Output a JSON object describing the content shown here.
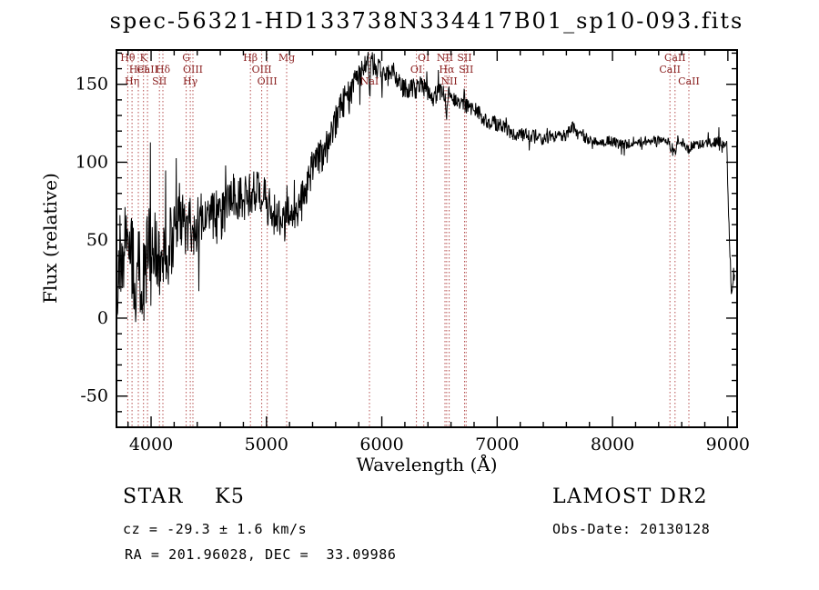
{
  "footer": {
    "star_class": "STAR    K5",
    "survey": "LAMOST DR2",
    "cz": "cz = -29.3 ± 1.6 km/s",
    "obs_date": "Obs-Date: 20130128",
    "ra_dec": "RA = 201.96028, DEC =  33.09986"
  },
  "chart_data": {
    "type": "line",
    "title": "spec-56321-HD133738N334417B01_sp10-093.fits",
    "xlabel": "Wavelength (Å)",
    "ylabel": "Flux (relative)",
    "xlim": [
      3700,
      9080
    ],
    "ylim": [
      -70,
      172
    ],
    "x_major_ticks": [
      4000,
      5000,
      6000,
      7000,
      8000,
      9000
    ],
    "x_minor_step": 200,
    "y_major_ticks": [
      -50,
      0,
      50,
      100,
      150
    ],
    "y_minor_step": 10,
    "grid": false,
    "legend": "none",
    "line_color": "#000000",
    "marker_line_color": "#b65050",
    "marker_label_color": "#8b2222",
    "label_row_y": [
      67,
      80,
      93
    ],
    "sample_step": 4,
    "spectral_lines": [
      {
        "label": "Hθ",
        "wavelength": 3798,
        "row": 0
      },
      {
        "label": "K",
        "wavelength": 3934,
        "row": 0
      },
      {
        "label": "G",
        "wavelength": 4304,
        "row": 0
      },
      {
        "label": "Hβ",
        "wavelength": 4861,
        "row": 0
      },
      {
        "label": "Mg",
        "wavelength": 5175,
        "row": 0
      },
      {
        "label": "OI",
        "wavelength": 6364,
        "row": 0
      },
      {
        "label": "NII",
        "wavelength": 6548,
        "row": 0
      },
      {
        "label": "SII",
        "wavelength": 6717,
        "row": 0
      },
      {
        "label": "CaII",
        "wavelength": 8542,
        "row": 0
      },
      {
        "label": "CaII",
        "wavelength": 3969,
        "row": 1
      },
      {
        "label": "HeI",
        "wavelength": 3889,
        "row": 1
      },
      {
        "label": "Hδ",
        "wavelength": 4102,
        "row": 1
      },
      {
        "label": "OIII",
        "wavelength": 4363,
        "row": 1
      },
      {
        "label": "OIII",
        "wavelength": 4959,
        "row": 1
      },
      {
        "label": "OI",
        "wavelength": 6300,
        "row": 1
      },
      {
        "label": "Hα",
        "wavelength": 6563,
        "row": 1
      },
      {
        "label": "SII",
        "wavelength": 6731,
        "row": 1
      },
      {
        "label": "CaII",
        "wavelength": 8498,
        "row": 1
      },
      {
        "label": "Hη",
        "wavelength": 3835,
        "row": 2
      },
      {
        "label": "SII",
        "wavelength": 4072,
        "row": 2
      },
      {
        "label": "Hγ",
        "wavelength": 4340,
        "row": 2
      },
      {
        "label": "OIII",
        "wavelength": 5007,
        "row": 2
      },
      {
        "label": "NaI",
        "wavelength": 5893,
        "row": 2
      },
      {
        "label": "NII",
        "wavelength": 6584,
        "row": 2
      },
      {
        "label": "CaII",
        "wavelength": 8662,
        "row": 2
      }
    ],
    "envelope": [
      [
        3700,
        25
      ],
      [
        3740,
        45
      ],
      [
        3780,
        40
      ],
      [
        3820,
        48
      ],
      [
        3860,
        38
      ],
      [
        3900,
        45
      ],
      [
        3940,
        35
      ],
      [
        3980,
        48
      ],
      [
        4020,
        42
      ],
      [
        4060,
        46
      ],
      [
        4100,
        40
      ],
      [
        4150,
        48
      ],
      [
        4200,
        50
      ],
      [
        4250,
        53
      ],
      [
        4300,
        52
      ],
      [
        4350,
        56
      ],
      [
        4400,
        60
      ],
      [
        4450,
        62
      ],
      [
        4500,
        64
      ],
      [
        4550,
        67
      ],
      [
        4600,
        70
      ],
      [
        4650,
        74
      ],
      [
        4700,
        78
      ],
      [
        4750,
        80
      ],
      [
        4800,
        83
      ],
      [
        4850,
        85
      ],
      [
        4900,
        80
      ],
      [
        4950,
        76
      ],
      [
        5000,
        73
      ],
      [
        5050,
        68
      ],
      [
        5100,
        63
      ],
      [
        5150,
        58
      ],
      [
        5200,
        61
      ],
      [
        5250,
        68
      ],
      [
        5300,
        76
      ],
      [
        5350,
        85
      ],
      [
        5400,
        95
      ],
      [
        5450,
        103
      ],
      [
        5500,
        112
      ],
      [
        5550,
        120
      ],
      [
        5600,
        128
      ],
      [
        5650,
        136
      ],
      [
        5700,
        143
      ],
      [
        5750,
        150
      ],
      [
        5800,
        156
      ],
      [
        5850,
        161
      ],
      [
        5880,
        163
      ],
      [
        5893,
        140
      ],
      [
        5910,
        162
      ],
      [
        5950,
        160
      ],
      [
        6000,
        157
      ],
      [
        6050,
        153
      ],
      [
        6100,
        155
      ],
      [
        6150,
        151
      ],
      [
        6200,
        149
      ],
      [
        6250,
        151
      ],
      [
        6300,
        148
      ],
      [
        6350,
        150
      ],
      [
        6400,
        147
      ],
      [
        6450,
        145
      ],
      [
        6500,
        147
      ],
      [
        6550,
        144
      ],
      [
        6563,
        128
      ],
      [
        6580,
        142
      ],
      [
        6620,
        140
      ],
      [
        6660,
        138
      ],
      [
        6700,
        136
      ],
      [
        6750,
        134
      ],
      [
        6800,
        131
      ],
      [
        6850,
        129
      ],
      [
        6900,
        127
      ],
      [
        6950,
        125
      ],
      [
        7000,
        124
      ],
      [
        7100,
        121
      ],
      [
        7200,
        119
      ],
      [
        7300,
        117
      ],
      [
        7400,
        116
      ],
      [
        7500,
        115
      ],
      [
        7600,
        117
      ],
      [
        7650,
        123
      ],
      [
        7700,
        116
      ],
      [
        7800,
        114
      ],
      [
        7900,
        113
      ],
      [
        8000,
        114
      ],
      [
        8100,
        113
      ],
      [
        8200,
        113
      ],
      [
        8300,
        114
      ],
      [
        8400,
        113
      ],
      [
        8490,
        112
      ],
      [
        8500,
        107
      ],
      [
        8540,
        106
      ],
      [
        8560,
        112
      ],
      [
        8600,
        113
      ],
      [
        8660,
        107
      ],
      [
        8700,
        112
      ],
      [
        8800,
        113
      ],
      [
        8900,
        113
      ],
      [
        8950,
        114
      ],
      [
        8990,
        112
      ],
      [
        9010,
        60
      ],
      [
        9030,
        18
      ],
      [
        9050,
        30
      ],
      [
        9060,
        25
      ]
    ],
    "noise_profile": [
      [
        3700,
        28
      ],
      [
        3900,
        30
      ],
      [
        4100,
        26
      ],
      [
        4300,
        22
      ],
      [
        4500,
        18
      ],
      [
        4700,
        15
      ],
      [
        4900,
        14
      ],
      [
        5100,
        13
      ],
      [
        5300,
        12
      ],
      [
        5500,
        11
      ],
      [
        5700,
        10
      ],
      [
        5900,
        8
      ],
      [
        6100,
        7
      ],
      [
        6300,
        7
      ],
      [
        6500,
        6
      ],
      [
        6700,
        5
      ],
      [
        6900,
        5
      ],
      [
        7100,
        4.5
      ],
      [
        7400,
        4
      ],
      [
        7700,
        3.5
      ],
      [
        8000,
        3.5
      ],
      [
        8400,
        3
      ],
      [
        8800,
        3
      ],
      [
        9060,
        4
      ]
    ]
  }
}
